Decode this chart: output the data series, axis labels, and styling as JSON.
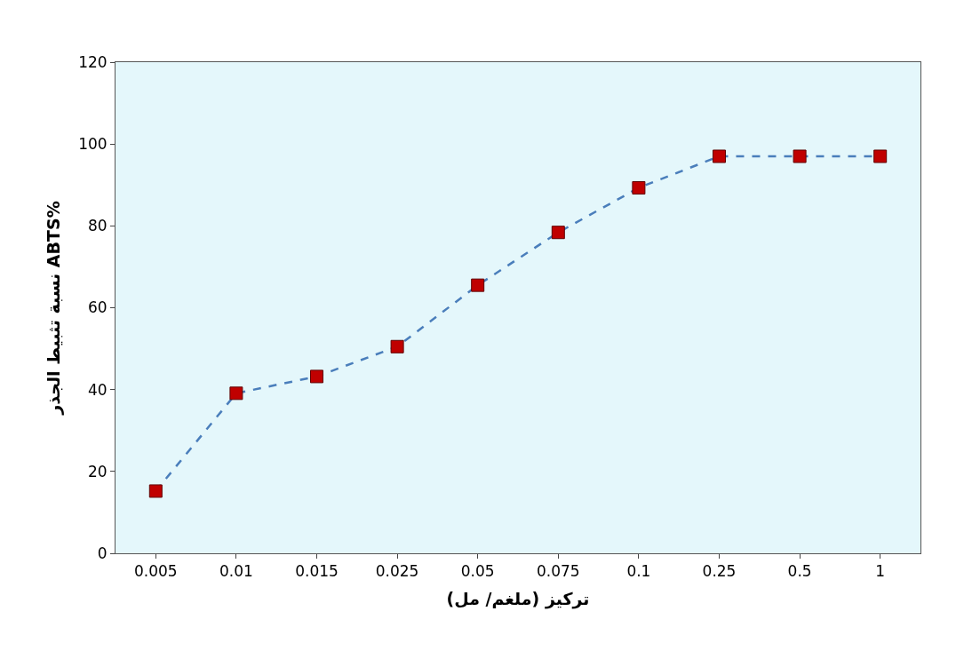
{
  "chart_data": {
    "type": "line",
    "xlabel": "تركيز (ملغم/ مل)",
    "ylabel": "نسبة تثبيط الجذر ABTS%",
    "categories": [
      "0.005",
      "0.01",
      "0.015",
      "0.025",
      "0.05",
      "0.075",
      "0.1",
      "0.25",
      "0.5",
      "1"
    ],
    "series": [
      {
        "color": "#c00000",
        "values": [
          15.2,
          39.1,
          43.2,
          50.5,
          65.5,
          78.4,
          89.3,
          97.0,
          97.0,
          97.0
        ]
      }
    ],
    "ylim": [
      0,
      120
    ],
    "yticks": [
      0,
      20,
      40,
      60,
      80,
      100,
      120
    ],
    "grid": false,
    "legend": false,
    "marker": "square",
    "line_style": "dashed"
  }
}
